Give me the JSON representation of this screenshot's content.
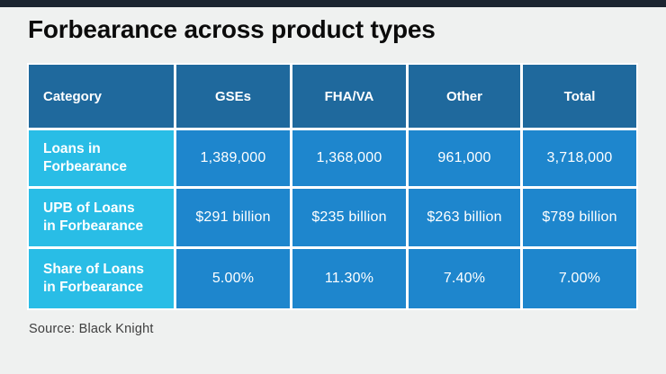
{
  "title": "Forbearance across product types",
  "source_note": "Source: Black Knight",
  "colors": {
    "page_background": "#eff1f0",
    "top_accent_bar": "#1b2530",
    "header_cell": "#1f699d",
    "category_cell": "#29bde6",
    "data_cell": "#1e86cd",
    "cell_text": "#ffffff",
    "gutter": "#ffffff"
  },
  "chart_data": {
    "type": "table",
    "title": "Forbearance across product types",
    "columns": [
      "Category",
      "GSEs",
      "FHA/VA",
      "Other",
      "Total"
    ],
    "rows": [
      {
        "label": "Loans in Forbearance",
        "values": [
          "1,389,000",
          "1,368,000",
          "961,000",
          "3,718,000"
        ]
      },
      {
        "label": "UPB of Loans in Forbearance",
        "values": [
          "$291 billion",
          "$235 billion",
          "$263 billion",
          "$789 billion"
        ]
      },
      {
        "label": "Share of Loans in Forbearance",
        "values": [
          "5.00%",
          "11.30%",
          "7.40%",
          "7.00%"
        ]
      }
    ],
    "source": "Source: Black Knight",
    "layout": {
      "header_row": true,
      "label_column_highlighted": true
    }
  }
}
